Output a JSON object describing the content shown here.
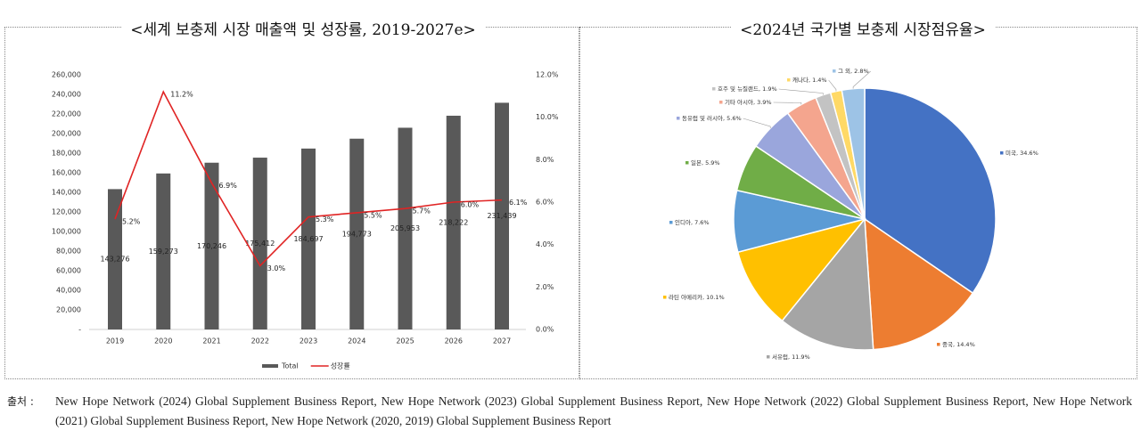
{
  "chart_data": [
    {
      "type": "bar",
      "title": "<세계 보충제 시장 매출액 및 성장률, 2019-2027e>",
      "categories": [
        "2019",
        "2020",
        "2021",
        "2022",
        "2023",
        "2024",
        "2025",
        "2026",
        "2027"
      ],
      "series": [
        {
          "name": "Total",
          "type": "bar",
          "color": "#595959",
          "values": [
            143276,
            159273,
            170246,
            175412,
            184697,
            194773,
            205953,
            218222,
            231439
          ],
          "value_labels": [
            "143,276",
            "159,273",
            "170,246",
            "175,412",
            "184,697",
            "194,773",
            "205,953",
            "218,222",
            "231,439"
          ]
        },
        {
          "name": "성장률",
          "type": "line",
          "axis": "y2",
          "color": "#e02424",
          "values": [
            5.2,
            11.2,
            6.9,
            3.0,
            5.3,
            5.5,
            5.7,
            6.0,
            6.1
          ],
          "value_labels": [
            "5.2%",
            "11.2%",
            "6.9%",
            "3.0%",
            "5.3%",
            "5.5%",
            "5.7%",
            "6.0%",
            "6.1%"
          ]
        }
      ],
      "ylim": [
        0,
        260000
      ],
      "yticks": [
        {
          "value": 0,
          "label": "-"
        },
        {
          "value": 20000,
          "label": "20,000"
        },
        {
          "value": 40000,
          "label": "40,000"
        },
        {
          "value": 60000,
          "label": "60,000"
        },
        {
          "value": 80000,
          "label": "80,000"
        },
        {
          "value": 100000,
          "label": "100,000"
        },
        {
          "value": 120000,
          "label": "120,000"
        },
        {
          "value": 140000,
          "label": "140,000"
        },
        {
          "value": 160000,
          "label": "160,000"
        },
        {
          "value": 180000,
          "label": "180,000"
        },
        {
          "value": 200000,
          "label": "200,000"
        },
        {
          "value": 220000,
          "label": "220,000"
        },
        {
          "value": 240000,
          "label": "240,000"
        },
        {
          "value": 260000,
          "label": "260,000"
        }
      ],
      "y2lim": [
        0,
        12
      ],
      "y2ticks": [
        {
          "value": 0,
          "label": "0.0%"
        },
        {
          "value": 2,
          "label": "2.0%"
        },
        {
          "value": 4,
          "label": "4.0%"
        },
        {
          "value": 6,
          "label": "6.0%"
        },
        {
          "value": 8,
          "label": "8.0%"
        },
        {
          "value": 10,
          "label": "10.0%"
        },
        {
          "value": 12,
          "label": "12.0%"
        }
      ],
      "grid": false,
      "legend": "bottom"
    },
    {
      "type": "pie",
      "title": "<2024년 국가별 보충제 시장점유율>",
      "values": [
        34.6,
        14.4,
        11.9,
        10.1,
        7.6,
        5.9,
        5.6,
        3.9,
        1.9,
        1.4,
        2.8
      ],
      "value_labels": [
        "미국, 34.6%",
        "중국, 14.4%",
        "서유럽, 11.9%",
        "라틴 아메리카, 10.1%",
        "인디아, 7.6%",
        "일본, 5.9%",
        "동유럽 및 러시아, 5.6%",
        "기타 아시아, 3.9%",
        "호주 및 뉴질랜드, 1.9%",
        "캐나다, 1.4%",
        "그 외, 2.8%"
      ],
      "colors": [
        "#4472c4",
        "#ed7d31",
        "#a5a5a5",
        "#ffc000",
        "#5b9bd5",
        "#70ad47",
        "#9aa6dc",
        "#f4a58e",
        "#c3c3c3",
        "#ffd966",
        "#9dc3e6"
      ]
    }
  ],
  "source": {
    "label": "출처 :",
    "text": "New Hope Network (2024) Global Supplement Business Report, New Hope Network (2023) Global Supplement Business Report, New Hope Network (2022) Global Supplement Business Report, New Hope Network (2021) Global Supplement Business Report, New Hope Network (2020, 2019) Global Supplement Business Report"
  }
}
